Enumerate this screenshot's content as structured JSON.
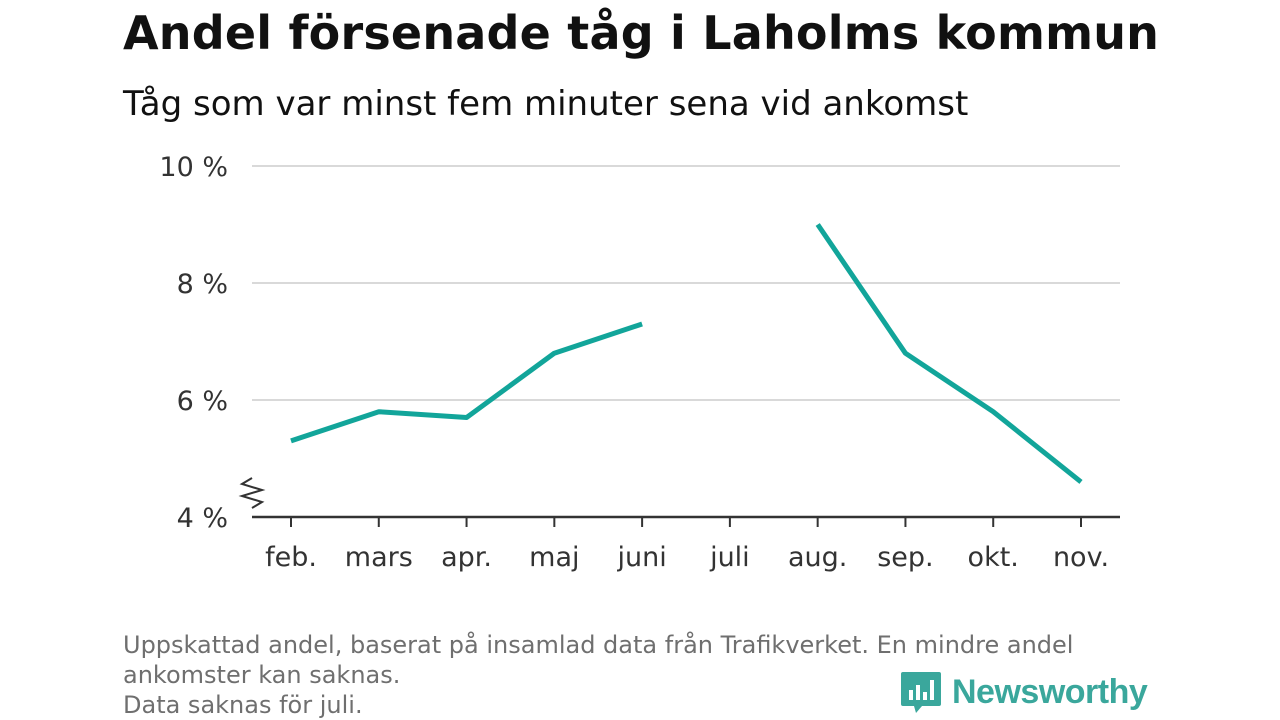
{
  "header": {
    "title": "Andel försenade tåg i Laholms kommun",
    "subtitle": "Tåg som var minst fem minuter sena vid ankomst"
  },
  "footnote": {
    "line1": "Uppskattad andel, baserat på insamlad data från Trafikverket. En mindre andel",
    "line2": "ankomster kan saknas.",
    "line3": "Data saknas för juli."
  },
  "logo": {
    "text": "Newsworthy",
    "icon": "bar-chart-speech-bubble-icon"
  },
  "colors": {
    "line": "#12a59a",
    "grid": "#d9d9d9",
    "axis": "#333333",
    "logo": "#3aa79c"
  },
  "chart_data": {
    "type": "line",
    "title": "Andel försenade tåg i Laholms kommun",
    "subtitle": "Tåg som var minst fem minuter sena vid ankomst",
    "categories": [
      "feb.",
      "mars",
      "apr.",
      "maj",
      "juni",
      "juli",
      "aug.",
      "sep.",
      "okt.",
      "nov."
    ],
    "series": [
      {
        "values": [
          5.3,
          5.8,
          5.7,
          6.8,
          7.3,
          null,
          9.0,
          6.8,
          5.8,
          4.6
        ]
      }
    ],
    "y_ticks": [
      4,
      6,
      8,
      10
    ],
    "y_tick_labels": [
      "4 %",
      "6 %",
      "8 %",
      "10 %"
    ],
    "ylim": [
      4,
      10
    ],
    "y_axis_break": true,
    "grid": true,
    "legend": "none"
  }
}
